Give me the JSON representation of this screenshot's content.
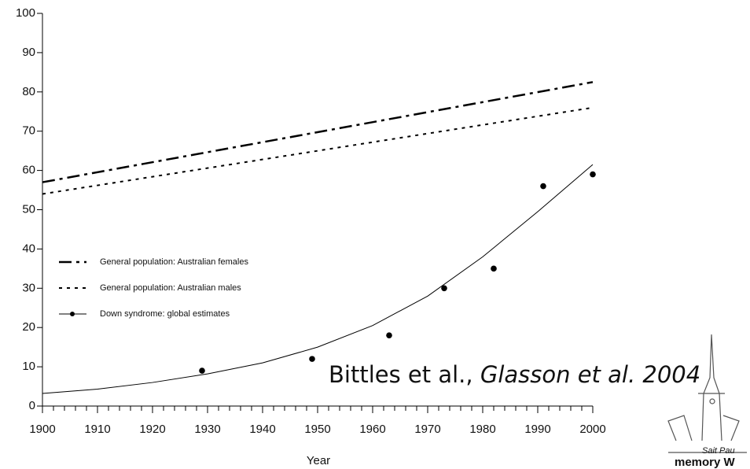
{
  "chart_data": {
    "type": "line",
    "xlabel": "Year",
    "xlim": [
      1900,
      2000
    ],
    "xticks": [
      1900,
      1910,
      1920,
      1930,
      1940,
      1950,
      1960,
      1970,
      1980,
      1990,
      2000
    ],
    "xminorticks": [
      1902,
      1904,
      1906,
      1908,
      1912,
      1914,
      1916,
      1918,
      1922,
      1924,
      1926,
      1928,
      1932,
      1934,
      1936,
      1938,
      1942,
      1944,
      1946,
      1948,
      1952,
      1954,
      1956,
      1958,
      1962,
      1964,
      1966,
      1968,
      1972,
      1974,
      1976,
      1978,
      1982,
      1984,
      1986,
      1988,
      1992,
      1994,
      1996,
      1998
    ],
    "ylim": [
      0,
      100
    ],
    "yticks": [
      0,
      10,
      20,
      30,
      40,
      50,
      60,
      70,
      80,
      90,
      100
    ],
    "series": [
      {
        "name": "General population: Australian females",
        "color": "#000000",
        "style": "dash-dot",
        "x": [
          1900,
          2000
        ],
        "values": [
          57,
          82.5
        ]
      },
      {
        "name": "General population: Australian males",
        "color": "#000000",
        "style": "dotted",
        "x": [
          1900,
          2000
        ],
        "values": [
          54,
          76
        ]
      },
      {
        "name": "Down syndrome: global estimates",
        "color": "#000000",
        "style": "points-fit",
        "x": [
          1929,
          1949,
          1963,
          1973,
          1982,
          1991,
          2000
        ],
        "values": [
          9,
          12,
          18,
          30,
          35,
          56,
          59
        ],
        "fit": {
          "x": [
            1900,
            1910,
            1920,
            1930,
            1940,
            1950,
            1960,
            1970,
            1980,
            1990,
            2000
          ],
          "values": [
            3.2,
            4.3,
            6,
            8.2,
            11,
            15,
            20.5,
            28,
            38,
            49.5,
            61.5
          ]
        }
      }
    ],
    "annotation": {
      "text": "Bittles et al.,",
      "italic": "Glasson et al. 2004"
    }
  },
  "logo": {
    "line1": "Sait Pau",
    "line2": "memory W"
  }
}
